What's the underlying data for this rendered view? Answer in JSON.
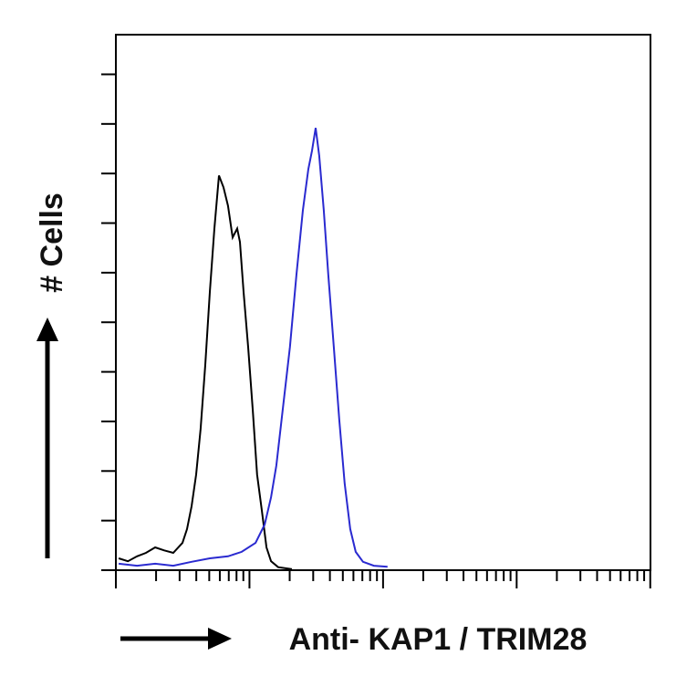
{
  "chart_data": {
    "type": "line",
    "xlabel": "Anti- KAP1 / TRIM28",
    "ylabel": "# Cells",
    "xscale": "log",
    "xlim": [
      1,
      10000
    ],
    "xticks": [
      1,
      2,
      3,
      4,
      5,
      6,
      7,
      8,
      9,
      10,
      20,
      30,
      40,
      50,
      60,
      70,
      80,
      90,
      100,
      200,
      300,
      400,
      500,
      600,
      700,
      800,
      900,
      1000,
      2000,
      3000,
      4000,
      5000,
      6000,
      7000,
      8000,
      9000,
      10000
    ],
    "ylim": [
      0,
      108
    ],
    "yticks": [
      0,
      10,
      20,
      30,
      40,
      50,
      60,
      70,
      80,
      90,
      100
    ],
    "series": [
      {
        "color": "#000000",
        "x": [
          1.05,
          1.23,
          1.44,
          1.68,
          1.97,
          2.3,
          2.69,
          3.15,
          3.41,
          3.69,
          3.99,
          4.31,
          4.67,
          5.05,
          5.46,
          5.91,
          6.39,
          6.91,
          7.48,
          8.09,
          8.48,
          9.03,
          9.77,
          10.6,
          11.4,
          12.4,
          13.4,
          14.5,
          16.4,
          20.8
        ],
        "values": [
          2.4,
          1.8,
          2.8,
          3.5,
          4.6,
          4.0,
          3.5,
          5.5,
          8.3,
          12.9,
          19.3,
          28.5,
          41.4,
          56.1,
          68.9,
          79.6,
          77.2,
          73.5,
          67.1,
          68.9,
          66.2,
          56.1,
          45.0,
          32.2,
          19.3,
          11.9,
          4.6,
          1.8,
          0.6,
          0.2
        ]
      },
      {
        "color": "#2a2ad0",
        "x": [
          1.05,
          1.44,
          1.97,
          2.69,
          3.69,
          5.05,
          6.91,
          8.75,
          11.1,
          13.0,
          14.5,
          15.9,
          17.7,
          20.1,
          22.5,
          25.1,
          27.6,
          29.4,
          31.3,
          33.3,
          36.0,
          38.9,
          42.8,
          47.0,
          51.6,
          56.8,
          62.4,
          70.8,
          85.4,
          108
        ],
        "values": [
          1.3,
          0.9,
          1.3,
          0.9,
          1.7,
          2.4,
          2.8,
          3.7,
          5.5,
          9.2,
          14.7,
          21.1,
          32.2,
          45.0,
          59.7,
          72.6,
          80.9,
          84.6,
          89.2,
          83.6,
          72.6,
          59.7,
          45.0,
          30.3,
          17.5,
          8.3,
          3.7,
          1.7,
          0.9,
          0.7
        ]
      }
    ]
  }
}
